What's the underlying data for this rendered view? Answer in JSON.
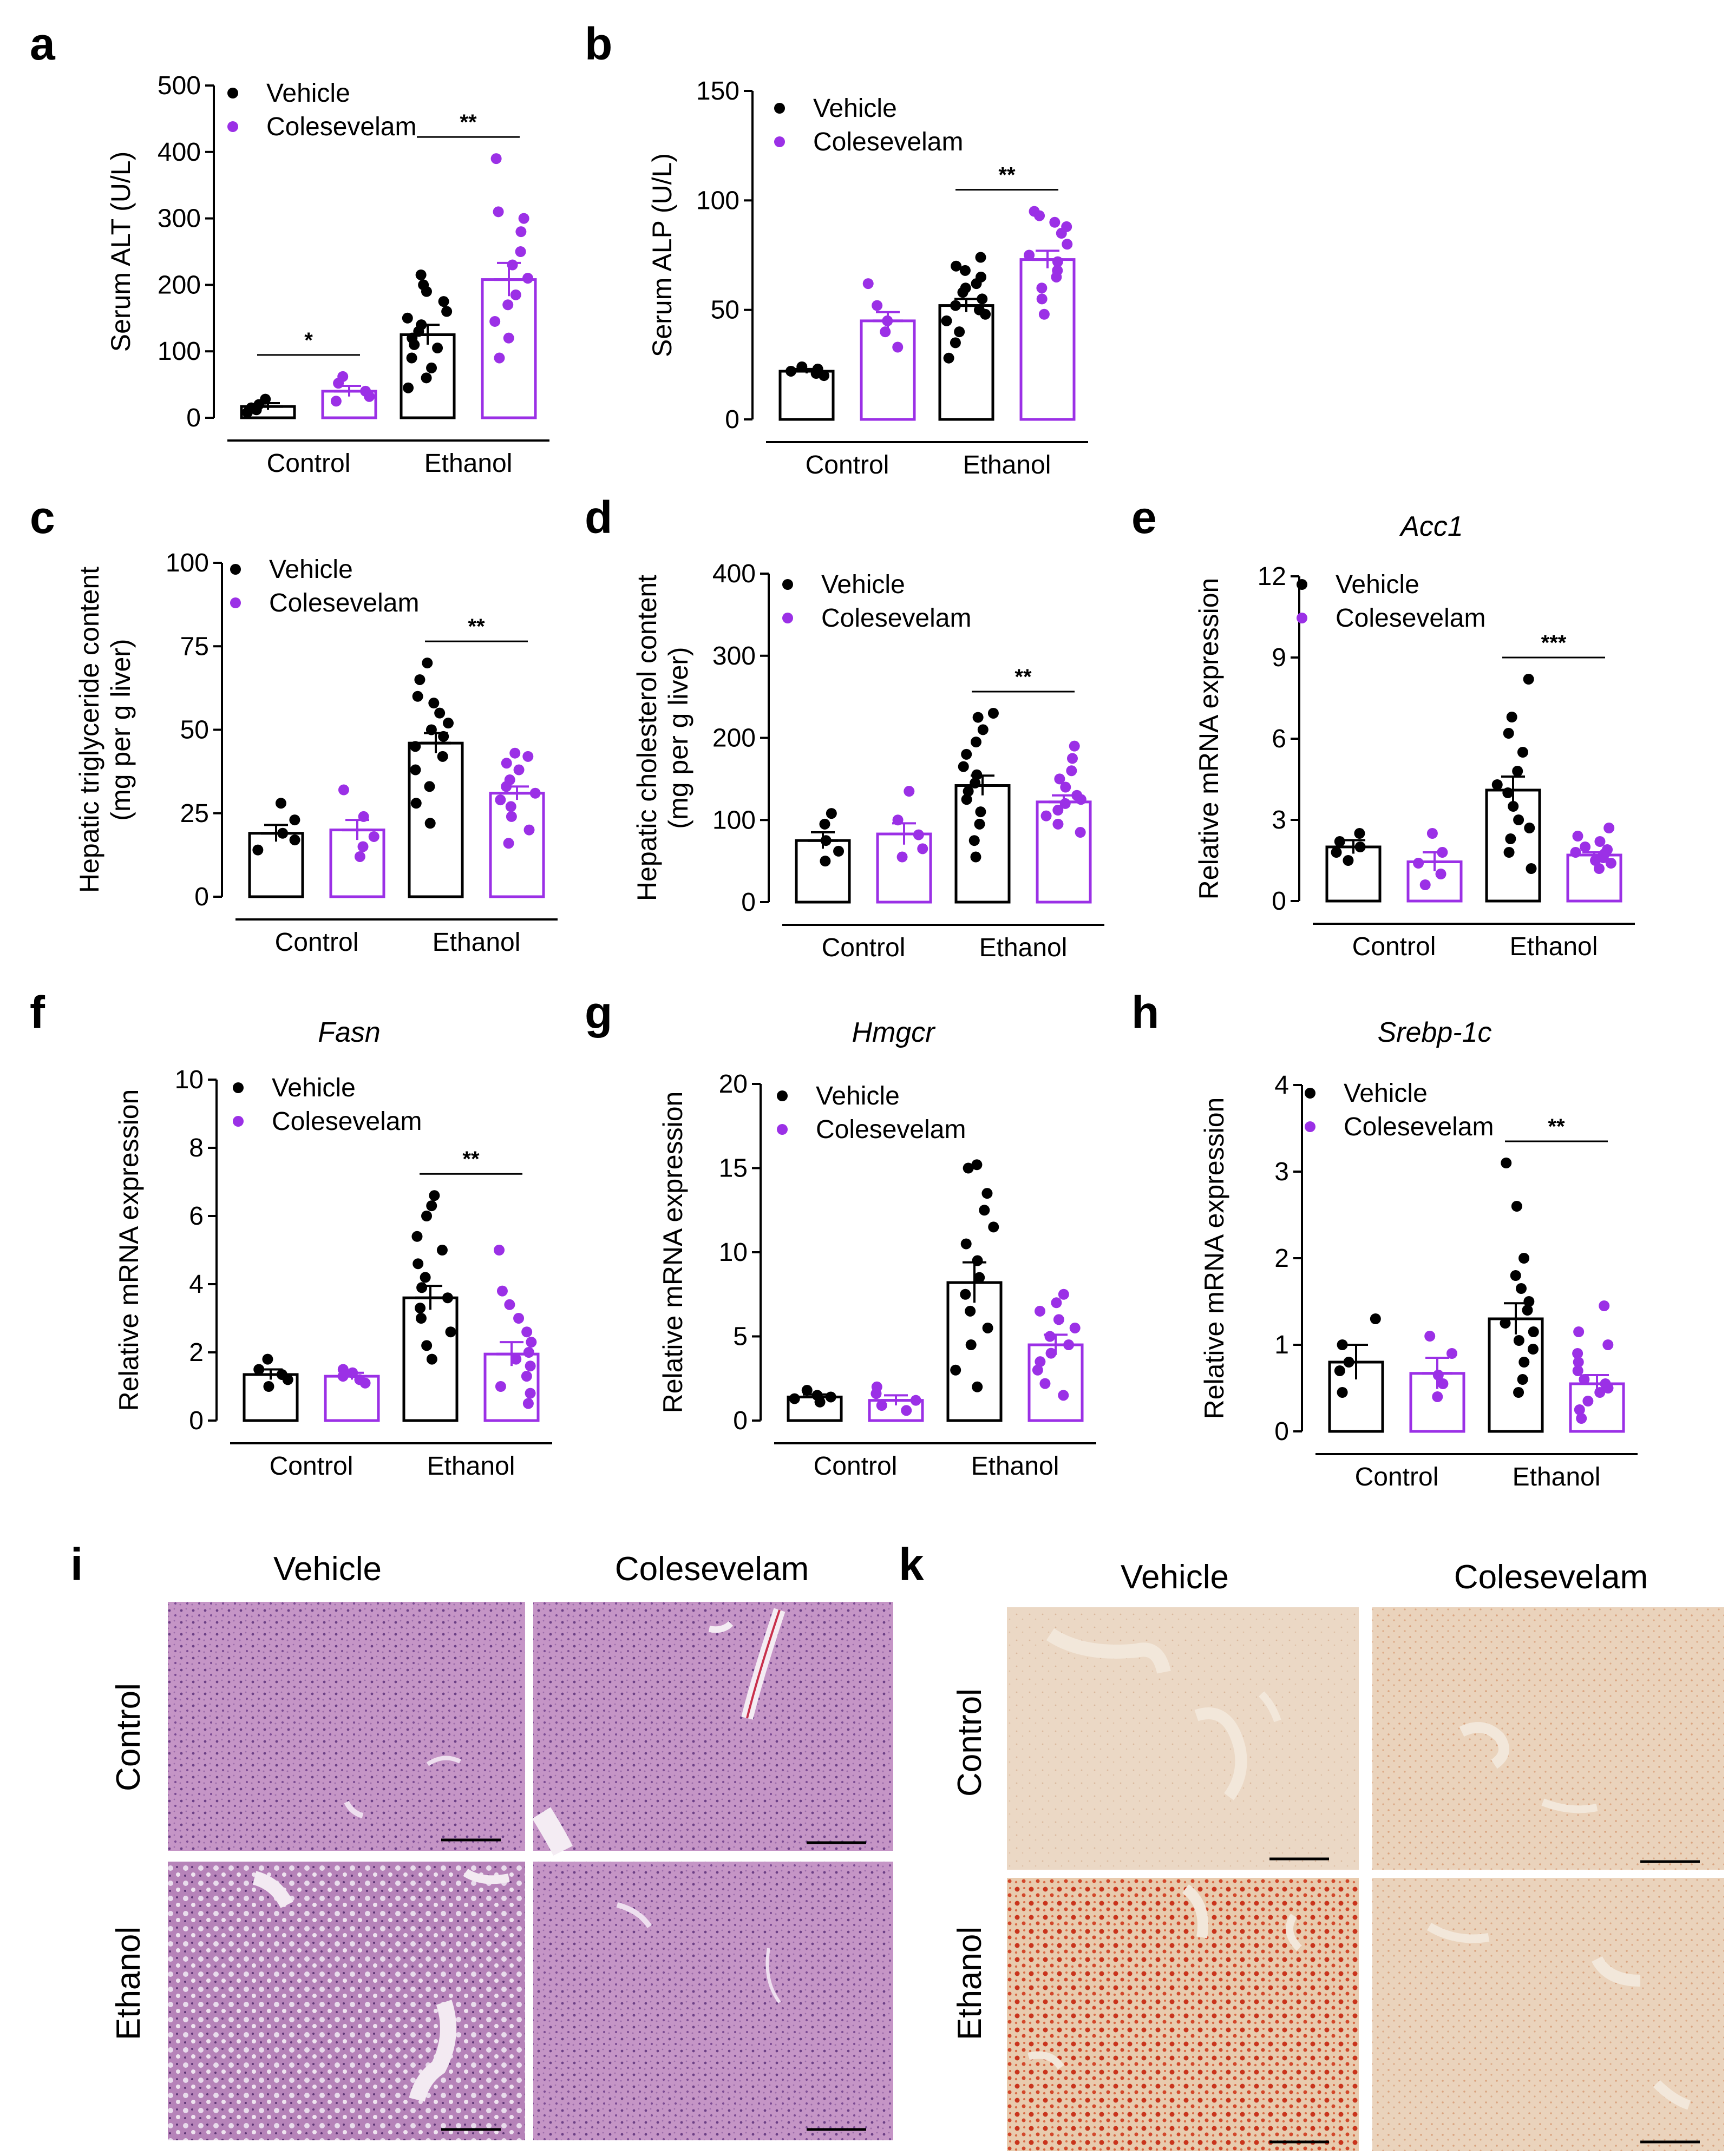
{
  "colors": {
    "vehicle": "#000000",
    "colesevelam": "#9B30E6",
    "he_light": "#C79AC8",
    "he_dark": "#8E5A99",
    "oil_bg": "#EAD7C3",
    "oil_red": "#C9341C"
  },
  "groups": [
    "Control",
    "Ethanol"
  ],
  "legend": [
    "Vehicle",
    "Colesevelam"
  ],
  "chart_data": [
    {
      "panel": "a",
      "type": "bar",
      "title": "",
      "ylabel": "Serum ALT (U/L)",
      "ylim": [
        0,
        500
      ],
      "yticks": [
        "0",
        "100",
        "200",
        "300",
        "400",
        "500"
      ],
      "categories": [
        "Control",
        "Ethanol"
      ],
      "series": [
        {
          "name": "Vehicle",
          "values": [
            17,
            125
          ],
          "sem": [
            5,
            15
          ],
          "points": [
            [
              8,
              12,
              15,
              20,
              28
            ],
            [
              45,
              60,
              75,
              90,
              105,
              110,
              120,
              130,
              140,
              150,
              160,
              175,
              190,
              200,
              215
            ]
          ]
        },
        {
          "name": "Colesevelam",
          "values": [
            40,
            208
          ],
          "sem": [
            8,
            25
          ],
          "points": [
            [
              25,
              32,
              40,
              52,
              62
            ],
            [
              90,
              120,
              145,
              170,
              185,
              210,
              230,
              250,
              280,
              300,
              310,
              390
            ]
          ]
        }
      ],
      "significance": [
        {
          "group": 0,
          "label": "*"
        },
        {
          "group": 1,
          "label": "**"
        }
      ]
    },
    {
      "panel": "b",
      "type": "bar",
      "title": "",
      "ylabel": "Serum ALP (U/L)",
      "ylim": [
        0,
        150
      ],
      "yticks": [
        "0",
        "50",
        "100",
        "150"
      ],
      "categories": [
        "Control",
        "Ethanol"
      ],
      "series": [
        {
          "name": "Vehicle",
          "values": [
            22,
            52
          ],
          "sem": [
            1,
            3
          ],
          "points": [
            [
              20,
              21,
              22,
              23,
              24
            ],
            [
              28,
              35,
              40,
              45,
              48,
              50,
              52,
              55,
              58,
              60,
              62,
              65,
              68,
              70,
              74
            ]
          ]
        },
        {
          "name": "Colesevelam",
          "values": [
            45,
            73
          ],
          "sem": [
            4,
            4
          ],
          "points": [
            [
              33,
              40,
              45,
              52,
              62
            ],
            [
              48,
              55,
              60,
              65,
              68,
              72,
              75,
              80,
              85,
              88,
              90,
              93,
              95
            ]
          ]
        }
      ],
      "significance": [
        {
          "group": 1,
          "label": "**"
        }
      ]
    },
    {
      "panel": "c",
      "type": "bar",
      "title": "",
      "ylabel": [
        "Hepatic triglyceride content",
        "(mg per g liver)"
      ],
      "ylim": [
        0,
        100
      ],
      "yticks": [
        "0",
        "25",
        "50",
        "75",
        "100"
      ],
      "categories": [
        "Control",
        "Ethanol"
      ],
      "series": [
        {
          "name": "Vehicle",
          "values": [
            19,
            46
          ],
          "sem": [
            2.5,
            3
          ],
          "points": [
            [
              14,
              17,
              19,
              23,
              28
            ],
            [
              22,
              28,
              33,
              38,
              42,
              45,
              48,
              50,
              52,
              55,
              58,
              60,
              65,
              70
            ]
          ]
        },
        {
          "name": "Colesevelam",
          "values": [
            20,
            31
          ],
          "sem": [
            3,
            2
          ],
          "points": [
            [
              12,
              15,
              18,
              24,
              32
            ],
            [
              16,
              20,
              24,
              27,
              29,
              31,
              33,
              35,
              38,
              40,
              42,
              43
            ]
          ]
        }
      ],
      "significance": [
        {
          "group": 1,
          "label": "**"
        }
      ]
    },
    {
      "panel": "d",
      "type": "bar",
      "title": "",
      "ylabel": [
        "Hepatic cholesterol content",
        "(mg per g liver)"
      ],
      "ylim": [
        0,
        400
      ],
      "yticks": [
        "0",
        "100",
        "200",
        "300",
        "400"
      ],
      "categories": [
        "Control",
        "Ethanol"
      ],
      "series": [
        {
          "name": "Vehicle",
          "values": [
            75,
            142
          ],
          "sem": [
            10,
            12
          ],
          "points": [
            [
              50,
              62,
              75,
              95,
              108
            ],
            [
              55,
              75,
              95,
              110,
              125,
              135,
              145,
              155,
              165,
              180,
              195,
              210,
              225,
              230
            ]
          ]
        },
        {
          "name": "Colesevelam",
          "values": [
            83,
            122
          ],
          "sem": [
            13,
            8
          ],
          "points": [
            [
              55,
              65,
              82,
              100,
              135
            ],
            [
              85,
              95,
              105,
              112,
              120,
              125,
              130,
              140,
              150,
              160,
              175,
              190
            ]
          ]
        }
      ],
      "significance": [
        {
          "group": 1,
          "label": "**"
        }
      ]
    },
    {
      "panel": "e",
      "type": "bar",
      "title": "Acc1",
      "ylabel": "Relative mRNA expression",
      "ylim": [
        0,
        12
      ],
      "yticks": [
        "0",
        "3",
        "6",
        "9",
        "12"
      ],
      "categories": [
        "Control",
        "Ethanol"
      ],
      "series": [
        {
          "name": "Vehicle",
          "values": [
            2.0,
            4.1
          ],
          "sem": [
            0.25,
            0.5
          ],
          "points": [
            [
              1.5,
              1.8,
              2.0,
              2.2,
              2.5
            ],
            [
              1.2,
              1.8,
              2.3,
              2.7,
              3.0,
              3.5,
              4.0,
              4.3,
              4.8,
              5.5,
              6.2,
              6.8,
              8.2
            ]
          ]
        },
        {
          "name": "Colesevelam",
          "values": [
            1.45,
            1.7
          ],
          "sem": [
            0.35,
            0.1
          ],
          "points": [
            [
              0.6,
              1.0,
              1.4,
              1.8,
              2.5
            ],
            [
              1.2,
              1.4,
              1.5,
              1.6,
              1.7,
              1.75,
              1.8,
              1.9,
              2.0,
              2.2,
              2.4,
              2.7
            ]
          ]
        }
      ],
      "significance": [
        {
          "group": 1,
          "label": "***"
        }
      ]
    },
    {
      "panel": "f",
      "type": "bar",
      "title": "Fasn",
      "ylabel": "Relative mRNA expression",
      "ylim": [
        0,
        10
      ],
      "yticks": [
        "0",
        "2",
        "4",
        "6",
        "8",
        "10"
      ],
      "categories": [
        "Control",
        "Ethanol"
      ],
      "series": [
        {
          "name": "Vehicle",
          "values": [
            1.35,
            3.6
          ],
          "sem": [
            0.15,
            0.35
          ],
          "points": [
            [
              1.0,
              1.2,
              1.35,
              1.5,
              1.8
            ],
            [
              1.8,
              2.2,
              2.6,
              3.0,
              3.3,
              3.6,
              3.9,
              4.2,
              4.6,
              5.0,
              5.4,
              6.0,
              6.3,
              6.6
            ]
          ]
        },
        {
          "name": "Colesevelam",
          "values": [
            1.3,
            1.95
          ],
          "sem": [
            0.1,
            0.35
          ],
          "points": [
            [
              1.1,
              1.2,
              1.3,
              1.4,
              1.5
            ],
            [
              0.5,
              0.8,
              1.0,
              1.3,
              1.6,
              1.8,
              2.0,
              2.3,
              2.6,
              3.0,
              3.4,
              3.8,
              5.0
            ]
          ]
        }
      ],
      "significance": [
        {
          "group": 1,
          "label": "**"
        }
      ]
    },
    {
      "panel": "g",
      "type": "bar",
      "title": "Hmgcr",
      "ylabel": "Relative mRNA expression",
      "ylim": [
        0,
        20
      ],
      "yticks": [
        "0",
        "5",
        "10",
        "15",
        "20"
      ],
      "categories": [
        "Control",
        "Ethanol"
      ],
      "series": [
        {
          "name": "Vehicle",
          "values": [
            1.4,
            8.2
          ],
          "sem": [
            0.15,
            1.2
          ],
          "points": [
            [
              1.1,
              1.3,
              1.4,
              1.5,
              1.8
            ],
            [
              2.0,
              3.0,
              4.5,
              5.5,
              6.5,
              7.5,
              8.5,
              9.5,
              10.5,
              11.5,
              12.5,
              13.5,
              15.0,
              15.2
            ]
          ]
        },
        {
          "name": "Colesevelam",
          "values": [
            1.2,
            4.5
          ],
          "sem": [
            0.3,
            0.6
          ],
          "points": [
            [
              0.6,
              0.9,
              1.2,
              1.6,
              2.0
            ],
            [
              1.5,
              2.2,
              3.0,
              3.5,
              4.0,
              4.5,
              5.0,
              5.5,
              6.0,
              6.5,
              7.0,
              7.5
            ]
          ]
        }
      ],
      "significance": []
    },
    {
      "panel": "h",
      "type": "bar",
      "title": "Srebp-1c",
      "ylabel": "Relative mRNA expression",
      "ylim": [
        0,
        4
      ],
      "yticks": [
        "0",
        "1",
        "2",
        "3",
        "4"
      ],
      "categories": [
        "Control",
        "Ethanol"
      ],
      "series": [
        {
          "name": "Vehicle",
          "values": [
            0.8,
            1.3
          ],
          "sem": [
            0.2,
            0.18
          ],
          "points": [
            [
              0.45,
              0.7,
              0.8,
              1.0,
              1.3
            ],
            [
              0.45,
              0.6,
              0.8,
              0.95,
              1.05,
              1.15,
              1.25,
              1.4,
              1.5,
              1.65,
              1.8,
              2.0,
              2.6,
              3.1
            ]
          ]
        },
        {
          "name": "Colesevelam",
          "values": [
            0.67,
            0.55
          ],
          "sem": [
            0.18,
            0.1
          ],
          "points": [
            [
              0.4,
              0.55,
              0.65,
              0.9,
              1.1
            ],
            [
              0.15,
              0.25,
              0.35,
              0.45,
              0.5,
              0.55,
              0.6,
              0.7,
              0.8,
              0.9,
              1.0,
              1.15,
              1.45
            ]
          ]
        }
      ],
      "significance": [
        {
          "group": 1,
          "label": "**"
        }
      ]
    }
  ],
  "micrographs": [
    {
      "panel": "i",
      "stain": "H&E",
      "columns": [
        "Vehicle",
        "Colesevelam"
      ],
      "rows": [
        "Control",
        "Ethanol"
      ]
    },
    {
      "panel": "k",
      "stain": "Oil Red O",
      "columns": [
        "Vehicle",
        "Colesevelam"
      ],
      "rows": [
        "Control",
        "Ethanol"
      ]
    }
  ]
}
